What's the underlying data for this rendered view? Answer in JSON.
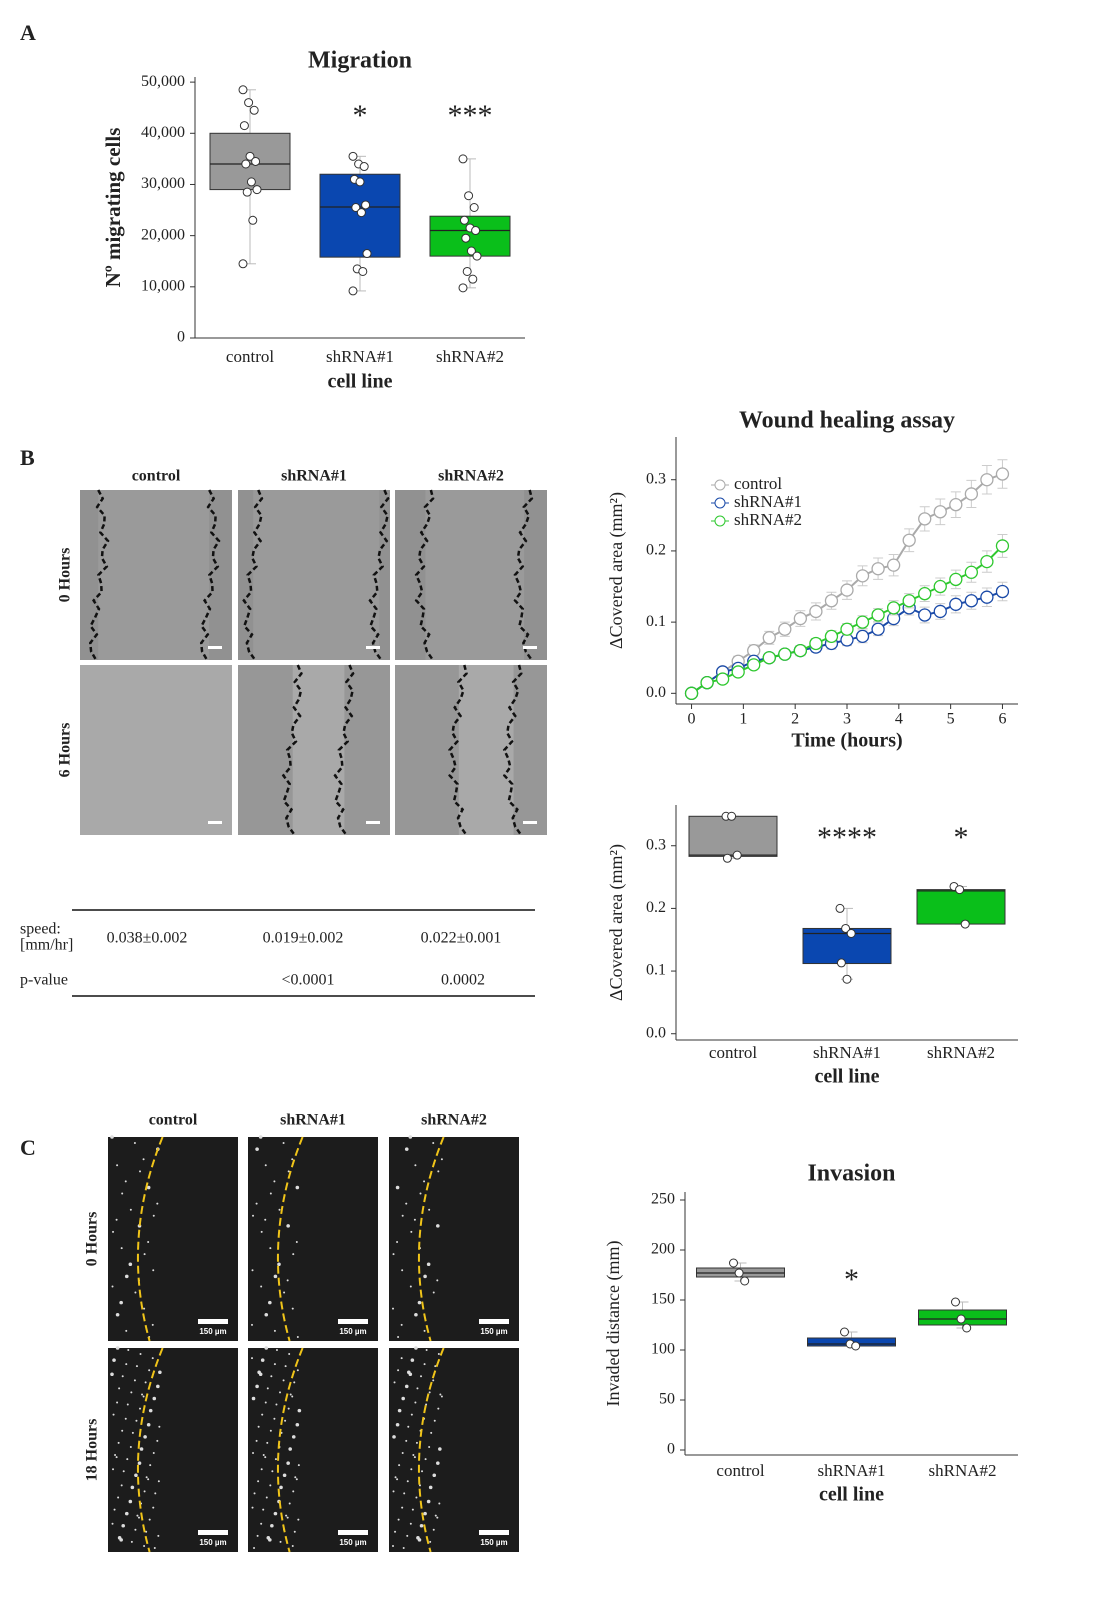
{
  "panel_labels": [
    "A",
    "B",
    "C"
  ],
  "chart_data": [
    {
      "type": "box",
      "title": "Migration",
      "ylabel": "Nº migrating cells",
      "xlabel": "cell line",
      "ylim": [
        0,
        51000
      ],
      "yticks": [
        0,
        {
          "value": 10000,
          "label": "10,000"
        },
        {
          "value": 20000,
          "label": "20,000"
        },
        {
          "value": 30000,
          "label": "30,000"
        },
        {
          "value": 40000,
          "label": "40,000"
        },
        {
          "value": 50000,
          "label": "50,000"
        }
      ],
      "boxes": [
        {
          "name": "control",
          "color": "#999999",
          "min": 14500,
          "q1": 29000,
          "median": 34000,
          "q3": 40000,
          "max": 48500,
          "points": [
            48500,
            46000,
            44500,
            41500,
            35500,
            34500,
            34000,
            30500,
            29000,
            28500,
            23000,
            14500
          ]
        },
        {
          "name": "shRNA#1",
          "color": "#0a47b0",
          "min": 9200,
          "q1": 15800,
          "median": 25600,
          "q3": 32000,
          "max": 35500,
          "points": [
            35500,
            34000,
            33500,
            31000,
            30500,
            26000,
            25500,
            24500,
            16500,
            13500,
            13000,
            9200
          ]
        },
        {
          "name": "shRNA#2",
          "color": "#0abf1a",
          "min": 9800,
          "q1": 16000,
          "median": 21000,
          "q3": 23800,
          "max": 35000,
          "points": [
            35000,
            27800,
            25500,
            23000,
            21500,
            21000,
            19500,
            17000,
            16000,
            13000,
            11500,
            9800
          ]
        }
      ],
      "annotations": [
        {
          "x": "shRNA#1",
          "text": "*"
        },
        {
          "x": "shRNA#2",
          "text": "***"
        }
      ]
    },
    {
      "type": "line",
      "title": "Wound healing assay",
      "ylabel": "ΔCovered area (mm²)",
      "xlabel": "Time (hours)",
      "xlim": [
        -0.3,
        6.3
      ],
      "xticks": [
        0,
        1,
        2,
        3,
        4,
        5,
        6
      ],
      "ylim": [
        -0.015,
        0.36
      ],
      "yticks": [
        {
          "value": 0,
          "label": "0.0"
        },
        0.1,
        0.2,
        0.3
      ],
      "legend": "top-left",
      "x": [
        0,
        0.3,
        0.6,
        0.9,
        1.2,
        1.5,
        1.8,
        2.1,
        2.4,
        2.7,
        3.0,
        3.3,
        3.6,
        3.9,
        4.2,
        4.5,
        4.8,
        5.1,
        5.4,
        5.7,
        6.0
      ],
      "series": [
        {
          "name": "control",
          "color": "#aaaaaa",
          "values": [
            0,
            0.015,
            0.03,
            0.045,
            0.06,
            0.078,
            0.09,
            0.105,
            0.115,
            0.13,
            0.145,
            0.165,
            0.175,
            0.18,
            0.215,
            0.245,
            0.255,
            0.265,
            0.28,
            0.3,
            0.308
          ],
          "errors": [
            0,
            0.004,
            0.006,
            0.007,
            0.008,
            0.009,
            0.01,
            0.011,
            0.012,
            0.012,
            0.013,
            0.014,
            0.015,
            0.015,
            0.016,
            0.017,
            0.018,
            0.018,
            0.019,
            0.02,
            0.02
          ]
        },
        {
          "name": "shRNA#1",
          "color": "#1a4aa8",
          "values": [
            0,
            0.015,
            0.03,
            0.035,
            0.045,
            0.05,
            0.055,
            0.06,
            0.065,
            0.07,
            0.075,
            0.08,
            0.09,
            0.105,
            0.12,
            0.11,
            0.115,
            0.125,
            0.13,
            0.135,
            0.143
          ],
          "errors": [
            0,
            0.003,
            0.004,
            0.005,
            0.005,
            0.006,
            0.006,
            0.007,
            0.007,
            0.008,
            0.008,
            0.009,
            0.009,
            0.01,
            0.01,
            0.011,
            0.011,
            0.012,
            0.012,
            0.013,
            0.013
          ]
        },
        {
          "name": "shRNA#2",
          "color": "#2ec82e",
          "values": [
            0,
            0.015,
            0.02,
            0.03,
            0.04,
            0.05,
            0.055,
            0.06,
            0.07,
            0.08,
            0.09,
            0.1,
            0.11,
            0.12,
            0.13,
            0.14,
            0.15,
            0.16,
            0.17,
            0.185,
            0.207
          ],
          "errors": [
            0,
            0.003,
            0.004,
            0.005,
            0.005,
            0.006,
            0.006,
            0.007,
            0.007,
            0.008,
            0.008,
            0.009,
            0.009,
            0.01,
            0.01,
            0.011,
            0.012,
            0.013,
            0.014,
            0.015,
            0.016
          ]
        }
      ]
    },
    {
      "type": "box",
      "ylabel": "ΔCovered area (mm²)",
      "xlabel": "cell line",
      "ylim": [
        -0.01,
        0.365
      ],
      "yticks": [
        {
          "value": 0,
          "label": "0.0"
        },
        0.1,
        0.2,
        0.3
      ],
      "boxes": [
        {
          "name": "control",
          "color": "#999999",
          "min": 0.28,
          "q1": 0.283,
          "median": 0.285,
          "q3": 0.347,
          "max": 0.347,
          "points": [
            0.347,
            0.347,
            0.285,
            0.28
          ]
        },
        {
          "name": "shRNA#1",
          "color": "#0a47b0",
          "min": 0.087,
          "q1": 0.112,
          "median": 0.16,
          "q3": 0.168,
          "max": 0.2,
          "points": [
            0.2,
            0.168,
            0.16,
            0.113,
            0.087
          ]
        },
        {
          "name": "shRNA#2",
          "color": "#0abf1a",
          "min": 0.175,
          "q1": 0.175,
          "median": 0.228,
          "q3": 0.23,
          "max": 0.235,
          "points": [
            0.235,
            0.23,
            0.175
          ]
        }
      ],
      "annotations": [
        {
          "x": "shRNA#1",
          "text": "****"
        },
        {
          "x": "shRNA#2",
          "text": "*"
        }
      ]
    },
    {
      "type": "box",
      "title": "Invasion",
      "ylabel": "Invaded distance (mm)",
      "xlabel": "cell line",
      "ylim": [
        -5,
        258
      ],
      "yticks": [
        0,
        50,
        100,
        150,
        200,
        250
      ],
      "boxes": [
        {
          "name": "control",
          "color": "#999999",
          "min": 169,
          "q1": 173,
          "median": 177,
          "q3": 182,
          "max": 187,
          "points": [
            187,
            177,
            169
          ]
        },
        {
          "name": "shRNA#1",
          "color": "#0a47b0",
          "min": 104,
          "q1": 104,
          "median": 106,
          "q3": 112,
          "max": 118,
          "points": [
            118,
            106,
            104
          ]
        },
        {
          "name": "shRNA#2",
          "color": "#0abf1a",
          "min": 122,
          "q1": 125,
          "median": 131,
          "q3": 140,
          "max": 148,
          "points": [
            148,
            131,
            122
          ]
        }
      ],
      "annotations": [
        {
          "x": "shRNA#1",
          "text": "*"
        }
      ]
    }
  ],
  "images_b": {
    "columns": [
      "control",
      "shRNA#1",
      "shRNA#2"
    ],
    "rows": [
      "0 Hours",
      "6 Hours"
    ]
  },
  "table": {
    "rows": [
      {
        "label": [
          "speed:",
          "[mm/hr]"
        ],
        "cells": [
          "0.038±0.002",
          "0.019±0.002",
          "0.022±0.001"
        ]
      },
      {
        "label": "p-value",
        "cells": [
          "<0.0001",
          "0.0002"
        ]
      }
    ]
  },
  "images_c": {
    "columns": [
      "control",
      "shRNA#1",
      "shRNA#2"
    ],
    "rows": [
      "0 Hours",
      "18 Hours"
    ],
    "scale_label": "150 µm"
  }
}
